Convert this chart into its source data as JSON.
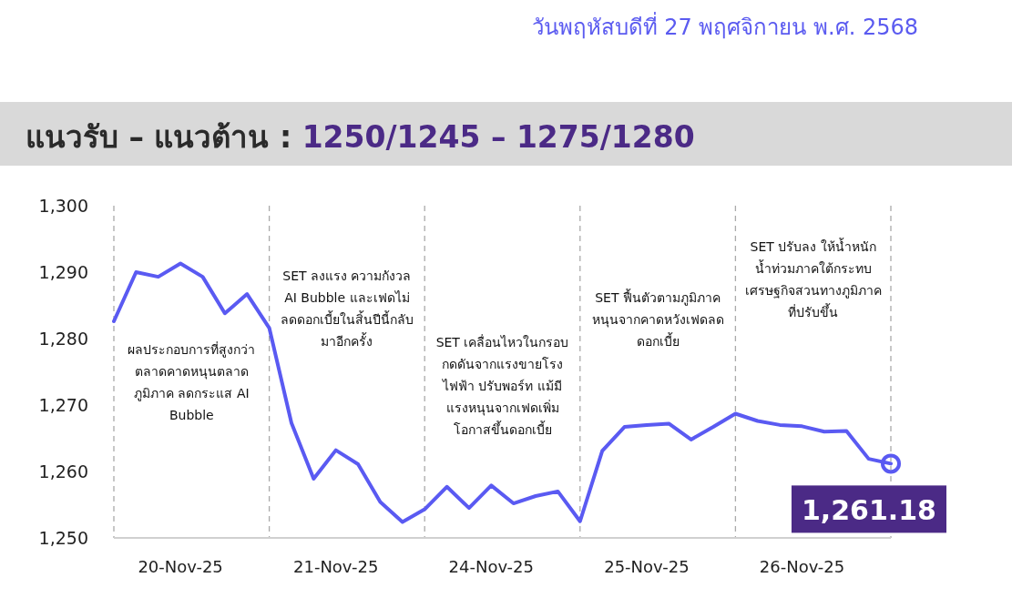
{
  "chart_data": {
    "type": "line",
    "title": "แนวรับ – แนวต้าน : 1250/1245 – 1275/1280",
    "subtitle": "วันพฤหัสบดีที่ 27 พฤศจิกายน พ.ศ. 2568",
    "categories": [
      null,
      null,
      null,
      "20-Nov-25",
      null,
      null,
      null,
      null,
      null,
      null,
      "21-Nov-25",
      null,
      null,
      null,
      null,
      null,
      null,
      "24-Nov-25",
      null,
      null,
      null,
      null,
      null,
      null,
      "25-Nov-25",
      null,
      null,
      null,
      null,
      null,
      null,
      "26-Nov-25",
      null,
      null,
      null,
      null
    ],
    "series": [
      {
        "color": "#5a5af2",
        "values": [
          1282.6,
          1290.0,
          1289.3,
          1291.3,
          1289.3,
          1283.8,
          1286.7,
          1281.6,
          1267.3,
          1258.9,
          1263.2,
          1261.1,
          1255.4,
          1252.4,
          1254.3,
          1257.7,
          1254.5,
          1257.9,
          1255.2,
          1256.3,
          1257.0,
          1252.5,
          1263.1,
          1266.7,
          1267.0,
          1267.2,
          1264.8,
          1266.7,
          1268.7,
          1267.6,
          1267.0,
          1266.8,
          1266.0,
          1266.1,
          1261.9,
          1261.18
        ],
        "value_labels": [
          null,
          null,
          null,
          null,
          null,
          null,
          null,
          null,
          null,
          null,
          null,
          null,
          null,
          null,
          null,
          null,
          null,
          null,
          null,
          null,
          null,
          null,
          null,
          null,
          null,
          null,
          null,
          null,
          null,
          null,
          null,
          null,
          null,
          null,
          null,
          "1,261.18"
        ]
      }
    ],
    "ylim": [
      1250,
      1300
    ],
    "yticks": [
      {
        "value": 1250,
        "label": "1,250"
      },
      {
        "value": 1260,
        "label": "1,260"
      },
      {
        "value": 1270,
        "label": "1,270"
      },
      {
        "value": 1280,
        "label": "1,280"
      },
      {
        "value": 1290,
        "label": "1,290"
      },
      {
        "value": 1300,
        "label": "1,300"
      }
    ],
    "annotations": [
      "ผลประกอบการที่สูงกว่าตลาดคาดหนุนตลาดภูมิภาค ลดกระแส AI Bubble",
      "SET ลงแรง ความกังวล AI Bubble และเฟดไม่ลดดอกเบี้ยในสิ้นปีนี้กลับมาอีกครั้ง",
      "SET เคลื่อนไหวในกรอบ กดดันจากแรงขายโรงไฟฟ้า ปรับพอร์ท แม้มีแรงหนุนจากเฟดเพิ่มโอกาสขึ้นดอกเบี้ย",
      "SET ฟื้นตัวตามภูมิภาค หนุนจากคาดหวังเฟดลดดอกเบี้ย",
      "SET ปรับลง ให้น้ำหนักน้ำท่วมภาคใต้กระทบเศรษฐกิจสวนทางภูมิภาคที่ปรับขึ้น"
    ],
    "grid": "x",
    "marker": "none",
    "line_style": "solid"
  }
}
